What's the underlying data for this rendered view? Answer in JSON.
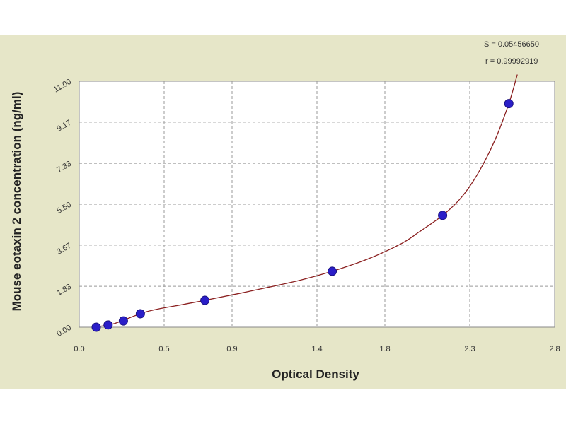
{
  "colors": {
    "background": "#e6e6c8",
    "plot_area": "#ffffff",
    "grid": "#999999",
    "curve": "#8b2020",
    "point_fill": "#2a1ec8",
    "point_stroke": "#1a1280"
  },
  "stats": {
    "s_text": "S = 0.05456650",
    "r_text": "r = 0.99992919"
  },
  "chart_data": {
    "type": "scatter",
    "xlabel": "Optical Density",
    "ylabel": "Mouse eotaxin 2 concentration (ng/ml)",
    "xlim": [
      0.0,
      2.8
    ],
    "ylim": [
      0.0,
      11.0
    ],
    "x_ticks": [
      0.0,
      0.5,
      0.9,
      1.4,
      1.8,
      2.3,
      2.8
    ],
    "x_tick_labels": [
      "0.0",
      "0.5",
      "0.9",
      "1.4",
      "1.8",
      "2.3",
      "2.8"
    ],
    "y_ticks": [
      0.0,
      1.83,
      3.67,
      5.5,
      7.33,
      9.17,
      11.0
    ],
    "y_tick_labels": [
      "0.00",
      "1.83",
      "3.67",
      "5.50",
      "7.33",
      "9.17",
      "11.00"
    ],
    "grid": true,
    "series": [
      {
        "x": [
          0.1,
          0.17,
          0.26,
          0.36,
          0.74,
          1.49,
          2.14,
          2.53
        ],
        "y": [
          0.0,
          0.1,
          0.28,
          0.6,
          1.2,
          2.5,
          5.0,
          10.0
        ]
      }
    ],
    "fit_curve": {
      "x": [
        0.08,
        0.2,
        0.4,
        0.6,
        0.74,
        1.0,
        1.3,
        1.49,
        1.7,
        1.9,
        2.0,
        2.14,
        2.25,
        2.35,
        2.45,
        2.53,
        2.58
      ],
      "y": [
        0.0,
        0.15,
        0.7,
        1.0,
        1.2,
        1.6,
        2.1,
        2.5,
        3.05,
        3.75,
        4.25,
        5.0,
        5.8,
        6.9,
        8.4,
        10.0,
        11.3
      ]
    }
  }
}
